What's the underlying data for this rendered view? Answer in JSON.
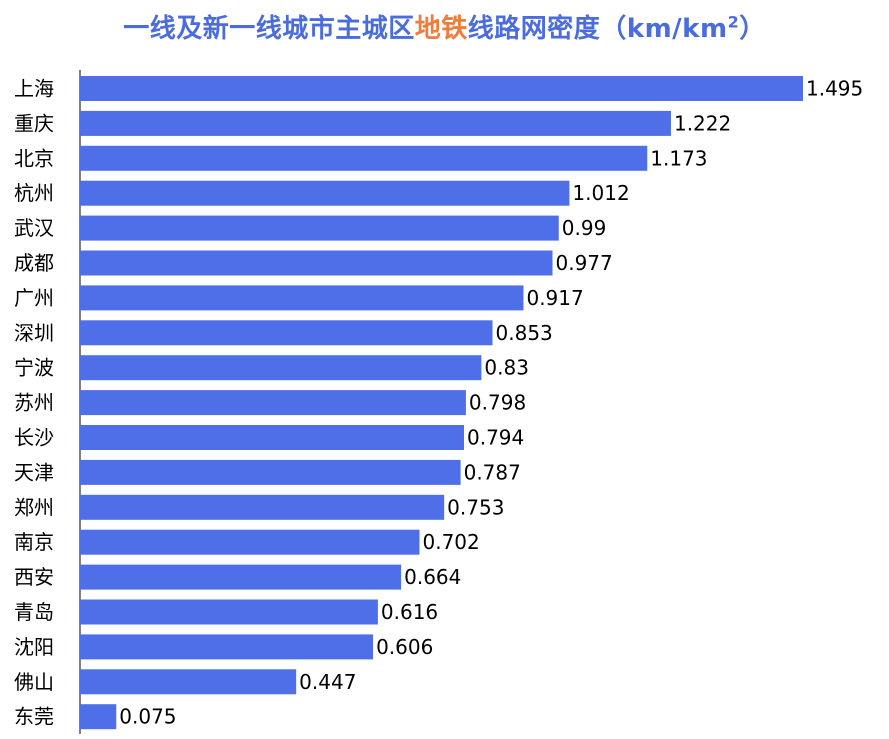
{
  "title": {
    "part1": "一线及新一线城市主城区",
    "highlight": "地铁",
    "part2": "线路网密度（km/km",
    "sup": "2",
    "part3": "）"
  },
  "colors": {
    "bar": "#4f6fe8",
    "title": "#4a6cdc",
    "highlight": "#f07c3c"
  },
  "chart_data": {
    "type": "bar",
    "orientation": "horizontal",
    "title": "一线及新一线城市主城区地铁线路网密度（km/km2）",
    "categories": [
      "上海",
      "重庆",
      "北京",
      "杭州",
      "武汉",
      "成都",
      "广州",
      "深圳",
      "宁波",
      "苏州",
      "长沙",
      "天津",
      "郑州",
      "南京",
      "西安",
      "青岛",
      "沈阳",
      "佛山",
      "东莞"
    ],
    "values": [
      1.495,
      1.222,
      1.173,
      1.012,
      0.99,
      0.977,
      0.917,
      0.853,
      0.83,
      0.798,
      0.794,
      0.787,
      0.753,
      0.702,
      0.664,
      0.616,
      0.606,
      0.447,
      0.075
    ],
    "value_labels": [
      "1.495",
      "1.222",
      "1.173",
      "1.012",
      "0.99",
      "0.977",
      "0.917",
      "0.853",
      "0.83",
      "0.798",
      "0.794",
      "0.787",
      "0.753",
      "0.702",
      "0.664",
      "0.616",
      "0.606",
      "0.447",
      "0.075"
    ],
    "xlim": [
      0,
      1.495
    ],
    "grid": false,
    "legend": "none"
  }
}
